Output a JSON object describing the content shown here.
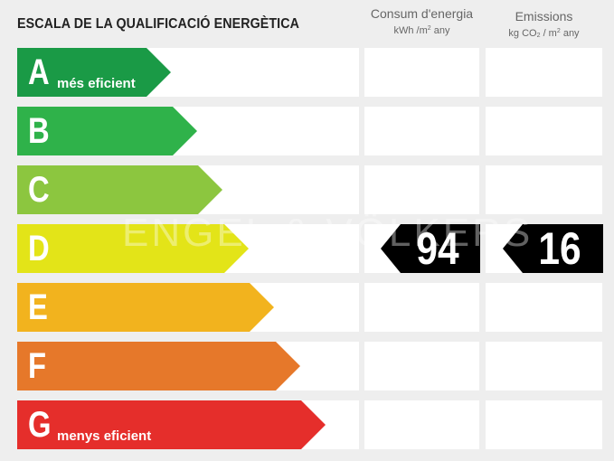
{
  "title": "ESCALA DE LA QUALIFICACIÓ ENERGÈTICA",
  "columns": {
    "consumption": {
      "label": "Consum d'energia",
      "unit_prefix": "kWh /m",
      "unit_sup": "2",
      "unit_suffix": " any"
    },
    "emissions": {
      "label": "Emissions",
      "unit_prefix": "kg CO",
      "unit_sub": "2",
      "unit_mid": " / m",
      "unit_sup": "2",
      "unit_suffix": " any"
    }
  },
  "scale": [
    {
      "letter": "A",
      "label": "més eficient",
      "color": "#1a9a46",
      "level": 1
    },
    {
      "letter": "B",
      "label": "",
      "color": "#2fb24a",
      "level": 2
    },
    {
      "letter": "C",
      "label": "",
      "color": "#8cc63f",
      "level": 3
    },
    {
      "letter": "D",
      "label": "",
      "color": "#e3e418",
      "level": 4
    },
    {
      "letter": "E",
      "label": "",
      "color": "#f2b31e",
      "level": 5
    },
    {
      "letter": "F",
      "label": "",
      "color": "#e6782a",
      "level": 6
    },
    {
      "letter": "G",
      "label": "menys eficient",
      "color": "#e52e2b",
      "level": 7
    }
  ],
  "rating": {
    "consumption": {
      "value": "94",
      "class": "D"
    },
    "emissions": {
      "value": "16",
      "class": "D"
    },
    "badge_color": "#000000"
  },
  "watermark": "ENGEL & VÖLKERS"
}
